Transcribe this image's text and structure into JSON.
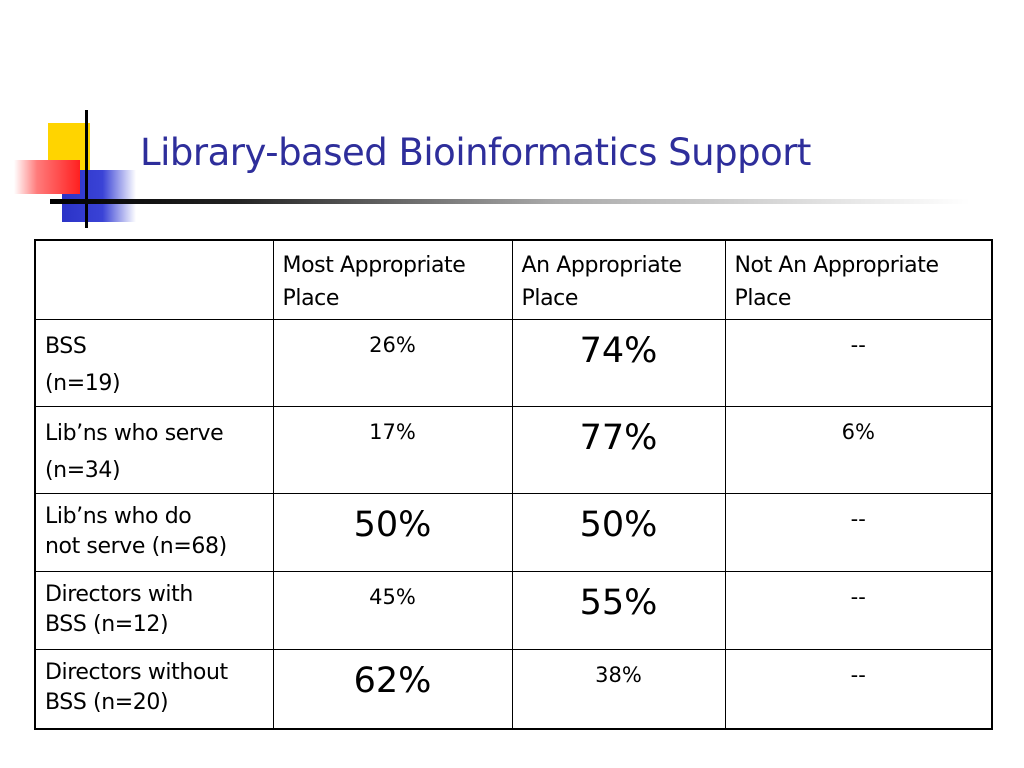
{
  "slide": {
    "title": "Library-based Bioinformatics Support"
  },
  "colors": {
    "title": "#2e2e9b",
    "logo_yellow": "#ffd400",
    "logo_blue": "#2b33c7",
    "logo_red": "#ff2020"
  },
  "table": {
    "columns": [
      "",
      "Most Appropriate Place",
      "An Appropriate Place",
      "Not An Appropriate Place"
    ],
    "rows": [
      {
        "label_line1": "BSS",
        "label_line2": "(n=19)",
        "values": [
          {
            "text": "26%",
            "emphasis": false
          },
          {
            "text": "74%",
            "emphasis": true
          },
          {
            "text": "--",
            "emphasis": false
          }
        ]
      },
      {
        "label_line1": "Lib’ns who serve",
        "label_line2": "(n=34)",
        "values": [
          {
            "text": "17%",
            "emphasis": false
          },
          {
            "text": "77%",
            "emphasis": true
          },
          {
            "text": "6%",
            "emphasis": false
          }
        ]
      },
      {
        "label_line1": "Lib’ns who do",
        "label_line2": "not serve (n=68)",
        "values": [
          {
            "text": "50%",
            "emphasis": true
          },
          {
            "text": "50%",
            "emphasis": true
          },
          {
            "text": "--",
            "emphasis": false
          }
        ]
      },
      {
        "label_line1": "Directors with",
        "label_line2": "BSS (n=12)",
        "values": [
          {
            "text": "45%",
            "emphasis": false
          },
          {
            "text": "55%",
            "emphasis": true
          },
          {
            "text": "--",
            "emphasis": false
          }
        ]
      },
      {
        "label_line1": "Directors without",
        "label_line2": "BSS (n=20)",
        "values": [
          {
            "text": "62%",
            "emphasis": true
          },
          {
            "text": "38%",
            "emphasis": false
          },
          {
            "text": "--",
            "emphasis": false
          }
        ]
      }
    ]
  }
}
